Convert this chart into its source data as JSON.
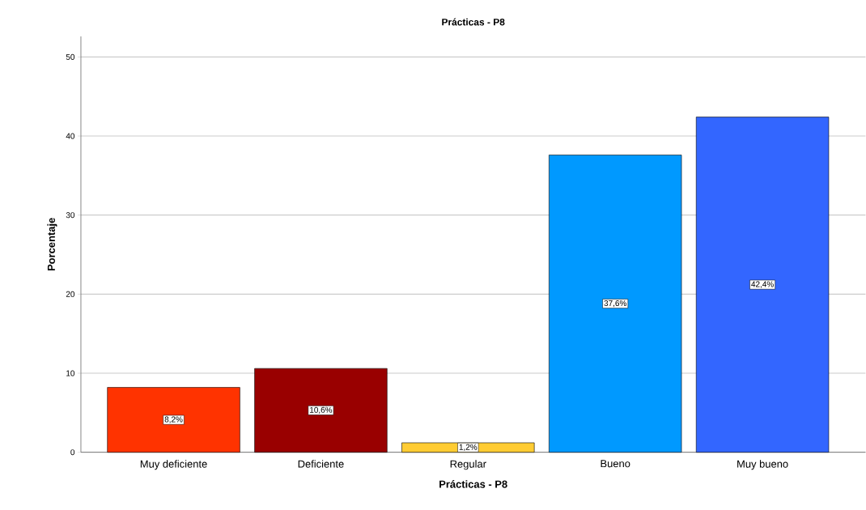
{
  "chart_data": {
    "type": "bar",
    "title": "Prácticas - P8",
    "xlabel": "Prácticas - P8",
    "ylabel": "Porcentaje",
    "categories": [
      "Muy deficiente",
      "Deficiente",
      "Regular",
      "Bueno",
      "Muy bueno"
    ],
    "values": [
      8.2,
      10.6,
      1.2,
      37.6,
      42.4
    ],
    "colors": [
      "#ff3300",
      "#990000",
      "#ffcc33",
      "#0099ff",
      "#3366ff"
    ],
    "value_labels": [
      "8,2%",
      "10,6%",
      "1,2%",
      "37,6%",
      "42,4%"
    ],
    "ylim": [
      0,
      52.6
    ],
    "yticks": [
      0,
      10,
      20,
      30,
      40,
      50
    ],
    "grid": "y"
  }
}
